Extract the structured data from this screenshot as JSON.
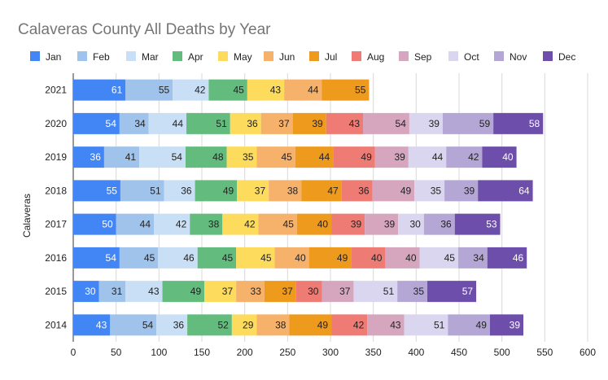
{
  "chart_data": {
    "type": "bar",
    "orientation": "horizontal",
    "stacked": true,
    "title": "Calaveras County All Deaths by Year",
    "ylabel": "Calaveras",
    "xlabel": "",
    "legend_position": "top",
    "grid": true,
    "xlim": [
      0,
      600
    ],
    "x_ticks": [
      "0",
      "50",
      "100",
      "150",
      "200",
      "250",
      "300",
      "350",
      "400",
      "450",
      "500",
      "550",
      "600"
    ],
    "categories": [
      "2021",
      "2020",
      "2019",
      "2018",
      "2017",
      "2016",
      "2015",
      "2014"
    ],
    "series": [
      {
        "name": "Jan",
        "color": "#4285f4",
        "values": [
          61,
          54,
          36,
          55,
          50,
          54,
          30,
          43
        ]
      },
      {
        "name": "Feb",
        "color": "#a0c3eb",
        "values": [
          55,
          34,
          41,
          51,
          44,
          45,
          31,
          54
        ]
      },
      {
        "name": "Mar",
        "color": "#c9dff5",
        "values": [
          42,
          44,
          54,
          36,
          42,
          46,
          43,
          36
        ]
      },
      {
        "name": "Apr",
        "color": "#63bc7e",
        "values": [
          45,
          51,
          48,
          49,
          38,
          45,
          49,
          52
        ]
      },
      {
        "name": "May",
        "color": "#fddb5c",
        "values": [
          43,
          36,
          35,
          37,
          42,
          45,
          37,
          29
        ]
      },
      {
        "name": "Jun",
        "color": "#f6b26b",
        "values": [
          44,
          37,
          45,
          38,
          45,
          40,
          33,
          38
        ]
      },
      {
        "name": "Jul",
        "color": "#ee9a1d",
        "values": [
          55,
          39,
          44,
          47,
          40,
          49,
          37,
          49
        ]
      },
      {
        "name": "Aug",
        "color": "#ee7b74",
        "values": [
          null,
          43,
          49,
          36,
          39,
          40,
          30,
          42
        ]
      },
      {
        "name": "Sep",
        "color": "#d5a6bd",
        "values": [
          null,
          54,
          39,
          49,
          39,
          40,
          37,
          43
        ]
      },
      {
        "name": "Oct",
        "color": "#dbd6ef",
        "values": [
          null,
          39,
          44,
          35,
          30,
          45,
          51,
          51
        ]
      },
      {
        "name": "Nov",
        "color": "#b4a7d6",
        "values": [
          null,
          59,
          42,
          39,
          36,
          34,
          35,
          49
        ]
      },
      {
        "name": "Dec",
        "color": "#6d4eaa",
        "values": [
          null,
          58,
          40,
          64,
          53,
          46,
          57,
          39
        ]
      }
    ]
  }
}
